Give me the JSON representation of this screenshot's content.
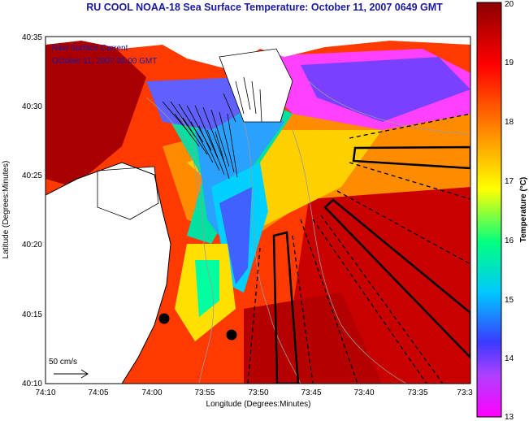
{
  "map": {
    "title": "RU COOL  NOAA-18  Sea Surface Temperature:  October 11, 2007 0649 GMT",
    "annotation_line1": "Raw Surface Current",
    "annotation_line2": "October 11, 2007 05:00 GMT",
    "scale_label": "50 cm/s",
    "xlabel": "Longitude (Degrees:Minutes)",
    "ylabel": "Latitude (Degrees:Minutes)",
    "x_ticks": [
      "74:10",
      "74:05",
      "74:00",
      "73:55",
      "73:50",
      "73:45",
      "73:40",
      "73:35",
      "73:3"
    ],
    "y_ticks": [
      "40:35",
      "40:30",
      "40:25",
      "40:20",
      "40:15",
      "40:10"
    ],
    "colors": {
      "land": "#ffffff",
      "coastline": "#000000",
      "vectors": "#000000",
      "title": "#1a1a9e"
    }
  },
  "colorbar": {
    "label": "Temperature (°C)",
    "min": 13,
    "max": 20,
    "ticks": [
      "20",
      "19",
      "18",
      "17",
      "16",
      "15",
      "14",
      "13"
    ],
    "stops": [
      "#ff00ff",
      "#3a3aff",
      "#00c8ff",
      "#00ff80",
      "#ffff00",
      "#ff8000",
      "#ff0000",
      "#8b0000"
    ]
  }
}
